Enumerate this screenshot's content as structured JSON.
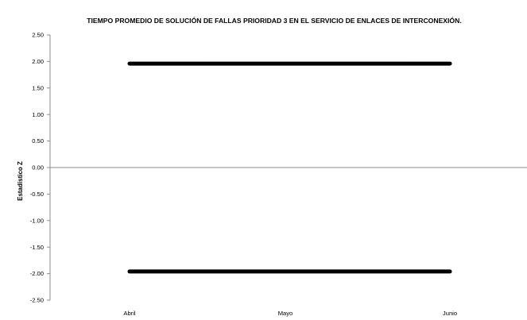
{
  "chart_data": {
    "type": "line",
    "title": "TIEMPO PROMEDIO DE SOLUCIÓN DE FALLAS PRIORIDAD 3 EN EL SERVICIO DE ENLACES DE INTERCONEXIÓN.",
    "xlabel": "",
    "ylabel": "Estadístico Z",
    "categories": [
      "Abril",
      "Mayo",
      "Junio"
    ],
    "ylim": [
      -2.5,
      2.5
    ],
    "yticks": [
      "2.50",
      "2.00",
      "1.50",
      "1.00",
      "0.50",
      "0.00",
      "-0.50",
      "-1.00",
      "-1.50",
      "-2.00",
      "-2.50"
    ],
    "grid": false,
    "legend": "none",
    "series": [
      {
        "values": [
          1.96,
          1.96,
          1.96
        ],
        "color": "#000000"
      },
      {
        "values": [
          -1.96,
          -1.96,
          -1.96
        ],
        "color": "#000000"
      }
    ]
  }
}
